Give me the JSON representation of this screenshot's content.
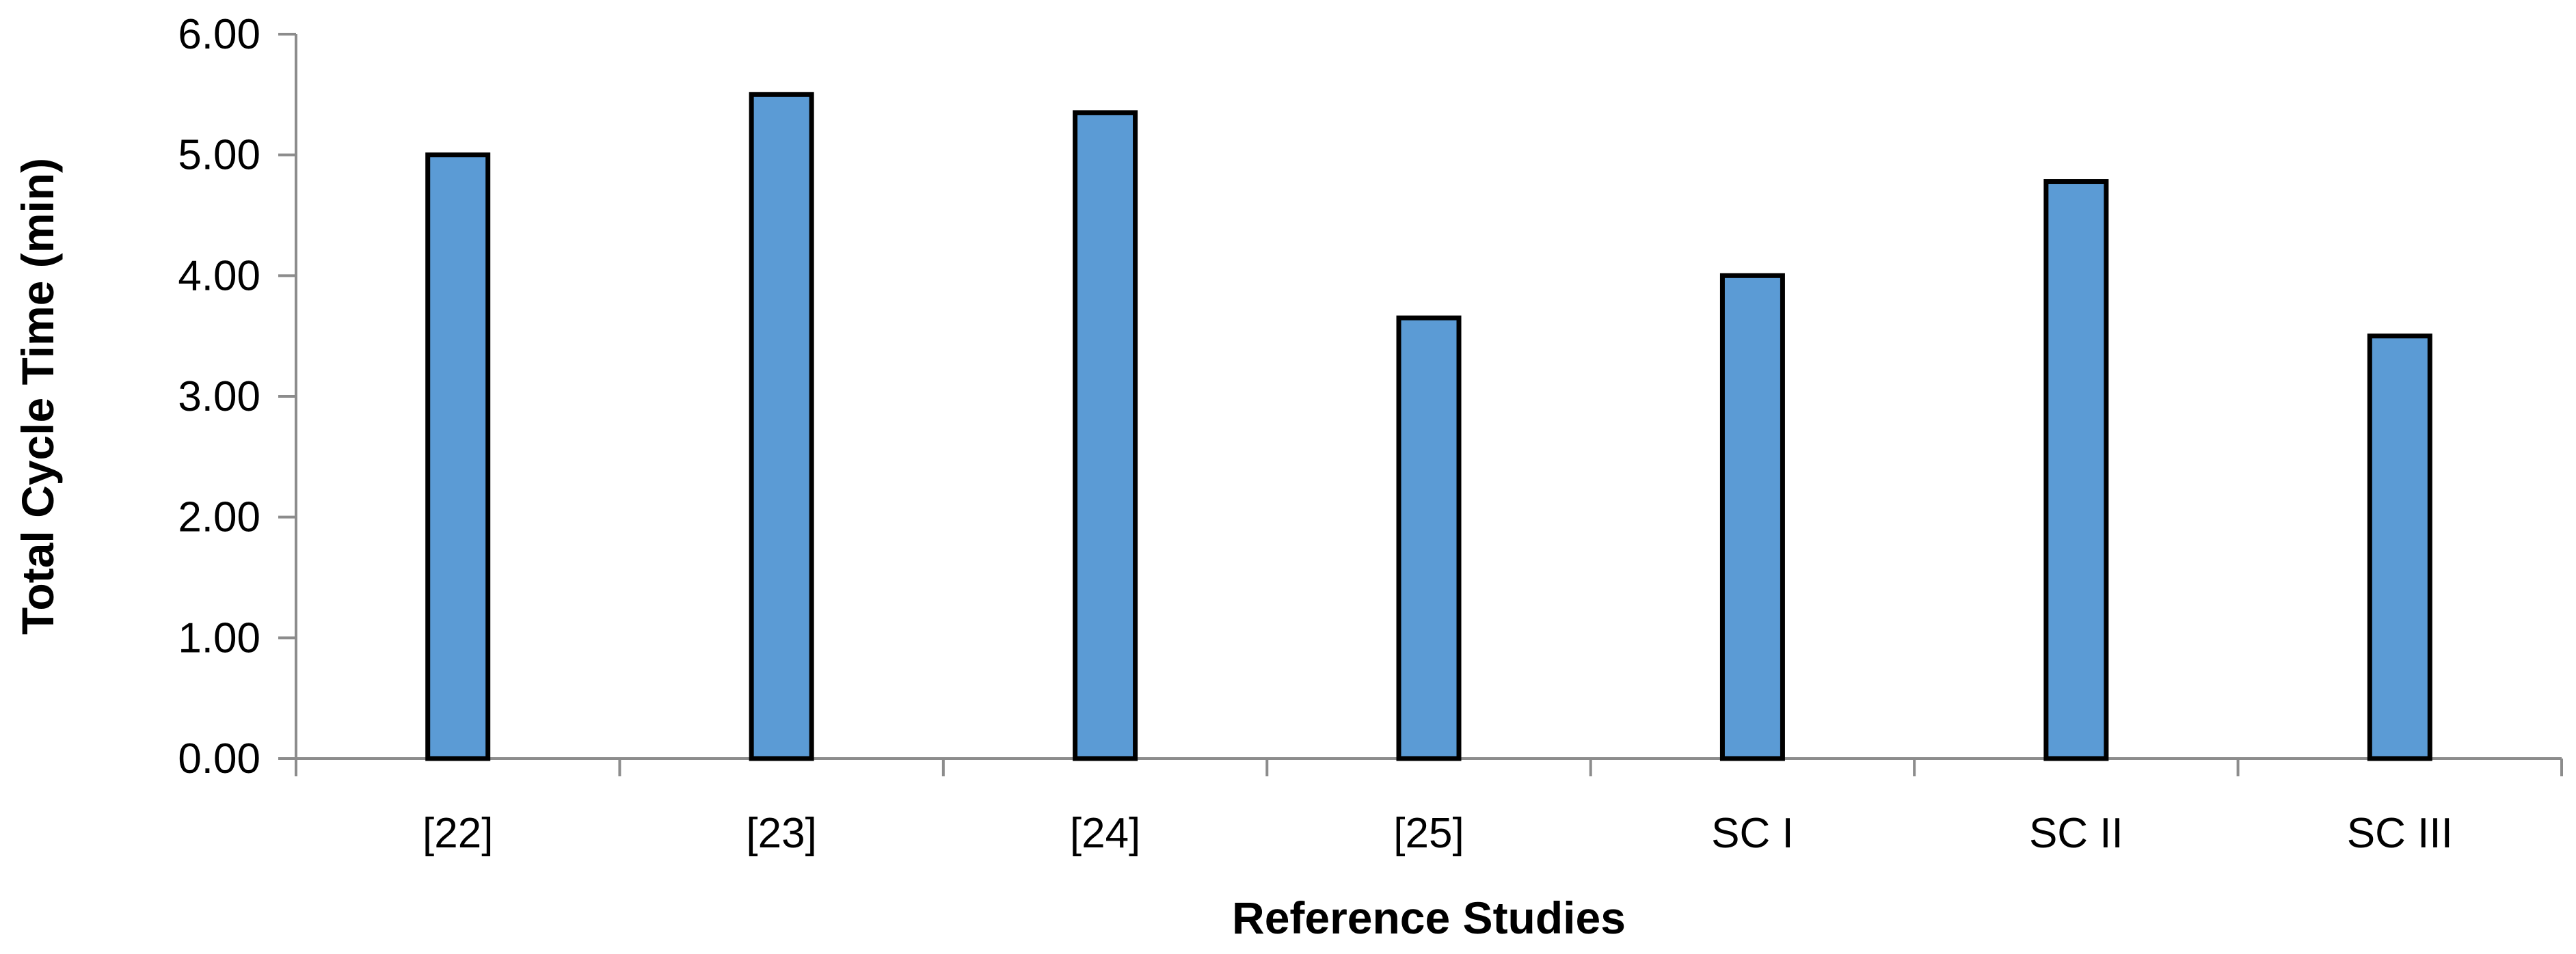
{
  "chart_data": {
    "type": "bar",
    "title": "",
    "xlabel": "Reference Studies",
    "ylabel": "Total Cycle Time (min)",
    "categories": [
      "[22]",
      "[23]",
      "[24]",
      "[25]",
      "SC I",
      "SC II",
      "SC III"
    ],
    "values": [
      5.0,
      5.5,
      5.35,
      3.65,
      4.0,
      4.78,
      3.5
    ],
    "ylim": [
      0,
      6
    ],
    "ytick_values": [
      0,
      1,
      2,
      3,
      4,
      5,
      6
    ],
    "ytick_labels": [
      "0.00",
      "1.00",
      "2.00",
      "3.00",
      "4.00",
      "5.00",
      "6.00"
    ],
    "grid": false,
    "legend": "none",
    "bar_color": "#5B9BD5",
    "bar_edge_color": "#000000",
    "axis_color": "#8C8C8C"
  }
}
